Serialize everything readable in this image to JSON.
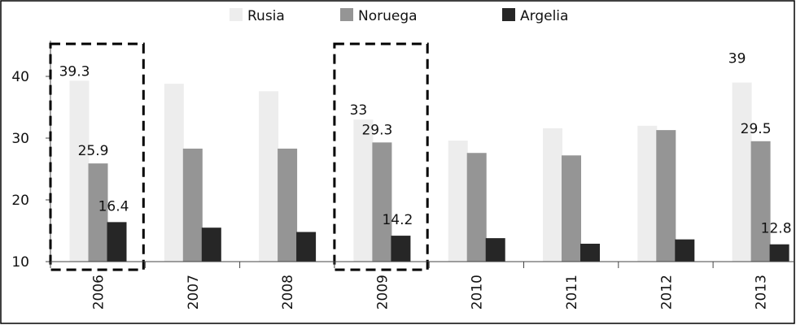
{
  "chart_data": {
    "type": "bar",
    "title": "",
    "xlabel": "",
    "ylabel": "",
    "categories": [
      "2006",
      "2007",
      "2008",
      "2009",
      "2010",
      "2011",
      "2012",
      "2013"
    ],
    "series": [
      {
        "name": "Rusia",
        "color": "#ededed",
        "values": [
          39.3,
          38.8,
          37.6,
          33.0,
          29.6,
          31.6,
          32.0,
          39.0
        ]
      },
      {
        "name": "Noruega",
        "color": "#959595",
        "values": [
          25.9,
          28.3,
          28.3,
          29.3,
          27.6,
          27.2,
          31.3,
          29.5
        ]
      },
      {
        "name": "Argelia",
        "color": "#262626",
        "values": [
          16.4,
          15.5,
          14.8,
          14.2,
          13.8,
          12.9,
          13.6,
          12.8
        ]
      }
    ],
    "data_labels": [
      {
        "series": 0,
        "category": 0,
        "text": "39.3"
      },
      {
        "series": 1,
        "category": 0,
        "text": "25.9"
      },
      {
        "series": 2,
        "category": 0,
        "text": "16.4"
      },
      {
        "series": 0,
        "category": 3,
        "text": "33"
      },
      {
        "series": 1,
        "category": 3,
        "text": "29.3"
      },
      {
        "series": 2,
        "category": 3,
        "text": "14.2"
      },
      {
        "series": 0,
        "category": 7,
        "text": "39"
      },
      {
        "series": 1,
        "category": 7,
        "text": "29.5"
      },
      {
        "series": 2,
        "category": 7,
        "text": "12.8"
      }
    ],
    "yticks": [
      "10",
      "20",
      "30",
      "40"
    ],
    "ylim": [
      10,
      46.5
    ],
    "grid": false,
    "legend_position": "top",
    "highlighted_categories": [
      "2006",
      "2009"
    ]
  }
}
